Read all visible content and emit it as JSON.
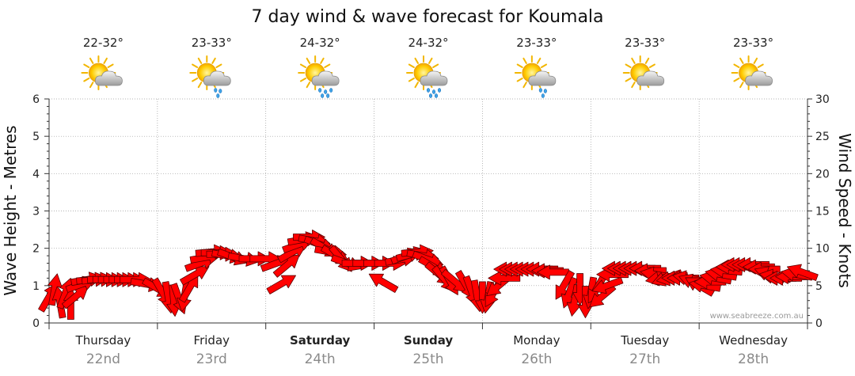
{
  "chart_data": {
    "type": "scatter",
    "title": "7 day wind & wave forecast for Koumala",
    "ylabel_left": "Wave Height - Metres",
    "ylabel_right": "Wind Speed - Knots",
    "y_left_range": [
      0,
      6
    ],
    "y_left_ticks": [
      "0",
      "1",
      "2",
      "3",
      "4",
      "5",
      "6"
    ],
    "y_right_range": [
      0,
      30
    ],
    "y_right_ticks": [
      "0",
      "5",
      "10",
      "15",
      "20",
      "25",
      "30"
    ],
    "grid": true,
    "credit": "www.seabreeze.com.au",
    "days": [
      {
        "name": "Thursday",
        "date": "22nd",
        "bold": false,
        "temp": "22-32°",
        "weather_icon": "sun-cloud-icon"
      },
      {
        "name": "Friday",
        "date": "23rd",
        "bold": false,
        "temp": "23-33°",
        "weather_icon": "sun-cloud-drizzle-icon"
      },
      {
        "name": "Saturday",
        "date": "24th",
        "bold": true,
        "temp": "24-32°",
        "weather_icon": "sun-cloud-rain-icon"
      },
      {
        "name": "Sunday",
        "date": "25th",
        "bold": true,
        "temp": "24-32°",
        "weather_icon": "sun-cloud-rain-icon"
      },
      {
        "name": "Monday",
        "date": "26th",
        "bold": false,
        "temp": "23-33°",
        "weather_icon": "sun-cloud-drizzle-icon"
      },
      {
        "name": "Tuesday",
        "date": "27th",
        "bold": false,
        "temp": "23-33°",
        "weather_icon": "sun-cloud-icon"
      },
      {
        "name": "Wednesday",
        "date": "28th",
        "bold": false,
        "temp": "23-33°",
        "weather_icon": "sun-cloud-icon"
      }
    ],
    "wind_arrows": {
      "color": "#ff0000",
      "note_points": "x = day index (0 = Thursday 22nd, fractional = time within day); speed in knots; dir = arrow pointing direction in degrees (0 = right, 90 = up)",
      "points": [
        {
          "x": 0.0,
          "speed": 3.5,
          "dir": 60
        },
        {
          "x": 0.05,
          "speed": 4.5,
          "dir": 80
        },
        {
          "x": 0.1,
          "speed": 2.8,
          "dir": 100
        },
        {
          "x": 0.15,
          "speed": 4.0,
          "dir": 70
        },
        {
          "x": 0.2,
          "speed": 2.6,
          "dir": 90
        },
        {
          "x": 0.25,
          "speed": 3.6,
          "dir": 40
        },
        {
          "x": 0.3,
          "speed": 5.2,
          "dir": 20
        },
        {
          "x": 0.35,
          "speed": 5.8,
          "dir": 10
        },
        {
          "x": 0.4,
          "speed": 5.8,
          "dir": 5
        },
        {
          "x": 0.45,
          "speed": 5.8,
          "dir": 5
        },
        {
          "x": 0.5,
          "speed": 5.8,
          "dir": 0
        },
        {
          "x": 0.55,
          "speed": 5.8,
          "dir": 0
        },
        {
          "x": 0.6,
          "speed": 5.8,
          "dir": 0
        },
        {
          "x": 0.65,
          "speed": 5.8,
          "dir": 0
        },
        {
          "x": 0.7,
          "speed": 5.8,
          "dir": 0
        },
        {
          "x": 0.75,
          "speed": 5.8,
          "dir": 0
        },
        {
          "x": 0.8,
          "speed": 5.8,
          "dir": 0
        },
        {
          "x": 0.9,
          "speed": 5.2,
          "dir": -10
        },
        {
          "x": 1.0,
          "speed": 4.6,
          "dir": -30
        },
        {
          "x": 1.05,
          "speed": 4.0,
          "dir": -60
        },
        {
          "x": 1.1,
          "speed": 3.4,
          "dir": -80
        },
        {
          "x": 1.15,
          "speed": 3.0,
          "dir": -85
        },
        {
          "x": 1.2,
          "speed": 3.2,
          "dir": -70
        },
        {
          "x": 1.25,
          "speed": 3.6,
          "dir": -100
        },
        {
          "x": 1.3,
          "speed": 4.8,
          "dir": 60
        },
        {
          "x": 1.35,
          "speed": 6.5,
          "dir": 30
        },
        {
          "x": 1.4,
          "speed": 8.0,
          "dir": 20
        },
        {
          "x": 1.45,
          "speed": 8.8,
          "dir": 10
        },
        {
          "x": 1.5,
          "speed": 9.5,
          "dir": 5
        },
        {
          "x": 1.55,
          "speed": 9.4,
          "dir": 0
        },
        {
          "x": 1.6,
          "speed": 9.2,
          "dir": 0
        },
        {
          "x": 1.65,
          "speed": 9.0,
          "dir": -10
        },
        {
          "x": 1.7,
          "speed": 8.8,
          "dir": -20
        },
        {
          "x": 1.8,
          "speed": 8.6,
          "dir": -10
        },
        {
          "x": 1.9,
          "speed": 8.6,
          "dir": 0
        },
        {
          "x": 2.0,
          "speed": 8.6,
          "dir": 0
        },
        {
          "x": 2.1,
          "speed": 8.0,
          "dir": 20
        },
        {
          "x": 2.15,
          "speed": 5.3,
          "dir": 30
        },
        {
          "x": 2.2,
          "speed": 7.8,
          "dir": 40
        },
        {
          "x": 2.25,
          "speed": 9.5,
          "dir": 30
        },
        {
          "x": 2.3,
          "speed": 10.5,
          "dir": 20
        },
        {
          "x": 2.35,
          "speed": 11.2,
          "dir": 10
        },
        {
          "x": 2.4,
          "speed": 11.5,
          "dir": 0
        },
        {
          "x": 2.45,
          "speed": 11.0,
          "dir": -10
        },
        {
          "x": 2.5,
          "speed": 10.5,
          "dir": -20
        },
        {
          "x": 2.55,
          "speed": 10.0,
          "dir": -30
        },
        {
          "x": 2.6,
          "speed": 9.5,
          "dir": -10
        },
        {
          "x": 2.65,
          "speed": 9.0,
          "dir": -30
        },
        {
          "x": 2.7,
          "speed": 8.5,
          "dir": -50
        },
        {
          "x": 2.75,
          "speed": 8.0,
          "dir": -20
        },
        {
          "x": 2.85,
          "speed": 8.0,
          "dir": 0
        },
        {
          "x": 2.95,
          "speed": 8.0,
          "dir": 0
        },
        {
          "x": 3.05,
          "speed": 8.0,
          "dir": 0
        },
        {
          "x": 3.15,
          "speed": 8.0,
          "dir": 0
        },
        {
          "x": 3.25,
          "speed": 8.5,
          "dir": 10
        },
        {
          "x": 3.3,
          "speed": 9.0,
          "dir": 20
        },
        {
          "x": 3.35,
          "speed": 9.2,
          "dir": 15
        },
        {
          "x": 3.4,
          "speed": 9.5,
          "dir": 5
        },
        {
          "x": 3.45,
          "speed": 9.0,
          "dir": -10
        },
        {
          "x": 3.5,
          "speed": 8.5,
          "dir": -20
        },
        {
          "x": 3.55,
          "speed": 7.5,
          "dir": -30
        },
        {
          "x": 3.6,
          "speed": 6.5,
          "dir": -40
        },
        {
          "x": 3.65,
          "speed": 5.8,
          "dir": -50
        },
        {
          "x": 3.7,
          "speed": 5.6,
          "dir": -60
        },
        {
          "x": 3.75,
          "speed": 5.5,
          "dir": -40
        },
        {
          "x": 3.08,
          "speed": 5.5,
          "dir": 150
        },
        {
          "x": 3.85,
          "speed": 5.0,
          "dir": -60
        },
        {
          "x": 3.9,
          "speed": 4.2,
          "dir": -70
        },
        {
          "x": 3.95,
          "speed": 3.6,
          "dir": -80
        },
        {
          "x": 4.0,
          "speed": 3.4,
          "dir": -90
        },
        {
          "x": 4.05,
          "speed": 3.4,
          "dir": -100
        },
        {
          "x": 4.1,
          "speed": 4.0,
          "dir": -120
        },
        {
          "x": 4.15,
          "speed": 5.0,
          "dir": -140
        },
        {
          "x": 4.2,
          "speed": 6.0,
          "dir": 180
        },
        {
          "x": 4.25,
          "speed": 7.2,
          "dir": 180
        },
        {
          "x": 4.3,
          "speed": 7.2,
          "dir": 180
        },
        {
          "x": 4.35,
          "speed": 7.2,
          "dir": 180
        },
        {
          "x": 4.4,
          "speed": 7.2,
          "dir": 180
        },
        {
          "x": 4.45,
          "speed": 7.2,
          "dir": 180
        },
        {
          "x": 4.5,
          "speed": 7.2,
          "dir": 180
        },
        {
          "x": 4.55,
          "speed": 7.2,
          "dir": 180
        },
        {
          "x": 4.6,
          "speed": 7.0,
          "dir": 180
        },
        {
          "x": 4.65,
          "speed": 6.8,
          "dir": 180
        },
        {
          "x": 4.75,
          "speed": 5.0,
          "dir": -120
        },
        {
          "x": 4.8,
          "speed": 4.0,
          "dir": -110
        },
        {
          "x": 4.85,
          "speed": 3.0,
          "dir": -100
        },
        {
          "x": 4.9,
          "speed": 4.5,
          "dir": -90
        },
        {
          "x": 4.95,
          "speed": 2.8,
          "dir": -90
        },
        {
          "x": 5.0,
          "speed": 4.0,
          "dir": -100
        },
        {
          "x": 5.05,
          "speed": 4.5,
          "dir": -120
        },
        {
          "x": 5.1,
          "speed": 3.5,
          "dir": -140
        },
        {
          "x": 5.15,
          "speed": 5.0,
          "dir": -160
        },
        {
          "x": 5.2,
          "speed": 6.5,
          "dir": 180
        },
        {
          "x": 5.25,
          "speed": 7.3,
          "dir": 180
        },
        {
          "x": 5.3,
          "speed": 7.3,
          "dir": 180
        },
        {
          "x": 5.35,
          "speed": 7.3,
          "dir": 180
        },
        {
          "x": 5.4,
          "speed": 7.3,
          "dir": 180
        },
        {
          "x": 5.45,
          "speed": 7.3,
          "dir": 180
        },
        {
          "x": 5.5,
          "speed": 7.3,
          "dir": 180
        },
        {
          "x": 5.55,
          "speed": 7.0,
          "dir": 180
        },
        {
          "x": 5.6,
          "speed": 6.5,
          "dir": 170
        },
        {
          "x": 5.65,
          "speed": 6.0,
          "dir": -170
        },
        {
          "x": 5.7,
          "speed": 6.0,
          "dir": -160
        },
        {
          "x": 5.75,
          "speed": 6.0,
          "dir": -170
        },
        {
          "x": 5.8,
          "speed": 6.0,
          "dir": 180
        },
        {
          "x": 5.85,
          "speed": 6.0,
          "dir": 180
        },
        {
          "x": 5.9,
          "speed": 6.0,
          "dir": 170
        },
        {
          "x": 5.95,
          "speed": 5.5,
          "dir": 160
        },
        {
          "x": 6.0,
          "speed": 5.0,
          "dir": 150
        },
        {
          "x": 6.05,
          "speed": 5.0,
          "dir": 170
        },
        {
          "x": 6.1,
          "speed": 5.5,
          "dir": 180
        },
        {
          "x": 6.15,
          "speed": 6.0,
          "dir": 170
        },
        {
          "x": 6.2,
          "speed": 6.5,
          "dir": 170
        },
        {
          "x": 6.25,
          "speed": 7.0,
          "dir": 175
        },
        {
          "x": 6.3,
          "speed": 7.5,
          "dir": 180
        },
        {
          "x": 6.35,
          "speed": 7.8,
          "dir": 180
        },
        {
          "x": 6.4,
          "speed": 7.8,
          "dir": 180
        },
        {
          "x": 6.45,
          "speed": 7.8,
          "dir": 180
        },
        {
          "x": 6.5,
          "speed": 7.8,
          "dir": 180
        },
        {
          "x": 6.55,
          "speed": 7.5,
          "dir": 180
        },
        {
          "x": 6.6,
          "speed": 7.2,
          "dir": 180
        },
        {
          "x": 6.65,
          "speed": 6.5,
          "dir": 160
        },
        {
          "x": 6.7,
          "speed": 6.2,
          "dir": 170
        },
        {
          "x": 6.75,
          "speed": 6.0,
          "dir": 180
        },
        {
          "x": 6.8,
          "speed": 6.0,
          "dir": 180
        },
        {
          "x": 6.85,
          "speed": 6.2,
          "dir": 180
        },
        {
          "x": 6.9,
          "speed": 6.5,
          "dir": 170
        },
        {
          "x": 6.95,
          "speed": 6.8,
          "dir": 160
        }
      ]
    }
  }
}
